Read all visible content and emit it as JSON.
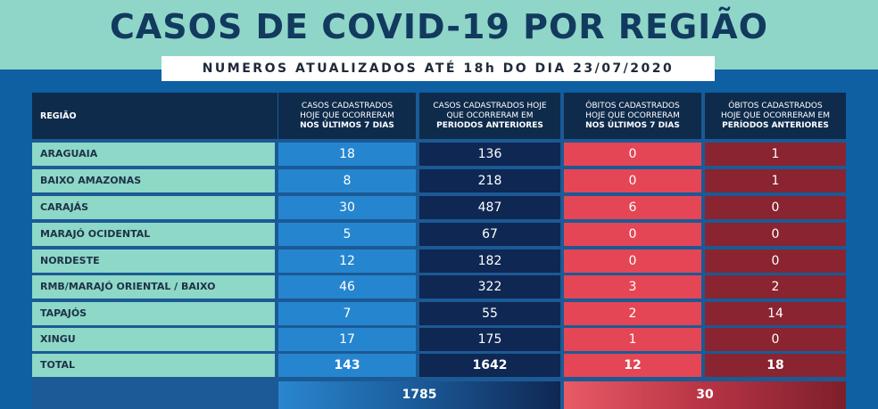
{
  "title": "CASOS DE COVID-19 POR REGIÃO",
  "subtitle": "NUMEROS ATUALIZADOS ATÉ 18h DO DIA 23/07/2020",
  "headers": {
    "region": "REGIÃO",
    "col1_line1": "CASOS CADASTRADOS",
    "col1_line2": "HOJE QUE OCORRERAM",
    "col1_line3": "NOS ÚLTIMOS 7 DIAS",
    "col2_line1": "CASOS CADASTRADOS HOJE",
    "col2_line2": "QUE OCORRERAM EM",
    "col2_line3": "PERIODOS ANTERIORES",
    "col3_line1": "ÓBITOS CADASTRADOS",
    "col3_line2": "HOJE QUE OCORRERAM",
    "col3_line3": "NOS ÚLTIMOS 7 DIAS",
    "col4_line1": "ÓBITOS CADASTRADOS",
    "col4_line2": "HOJE QUE OCORRERAM EM",
    "col4_line3": "PERÍODOS ANTERIORES"
  },
  "rows": [
    {
      "region": "ARAGUAIA",
      "c1": "18",
      "c2": "136",
      "c3": "0",
      "c4": "1"
    },
    {
      "region": "BAIXO AMAZONAS",
      "c1": "8",
      "c2": "218",
      "c3": "0",
      "c4": "1"
    },
    {
      "region": "CARAJÁS",
      "c1": "30",
      "c2": "487",
      "c3": "6",
      "c4": "0"
    },
    {
      "region": "MARAJÓ OCIDENTAL",
      "c1": "5",
      "c2": "67",
      "c3": "0",
      "c4": "0"
    },
    {
      "region": "NORDESTE",
      "c1": "12",
      "c2": "182",
      "c3": "0",
      "c4": "0"
    },
    {
      "region": "RMB/MARAJÓ ORIENTAL / BAIXO TOCANTINS",
      "c1": "46",
      "c2": "322",
      "c3": "3",
      "c4": "2"
    },
    {
      "region": "TAPAJÓS",
      "c1": "7",
      "c2": "55",
      "c3": "2",
      "c4": "14"
    },
    {
      "region": "XINGU",
      "c1": "17",
      "c2": "175",
      "c3": "1",
      "c4": "0"
    }
  ],
  "total": {
    "region": "TOTAL",
    "c1": "143",
    "c2": "1642",
    "c3": "12",
    "c4": "18"
  },
  "grand_total": {
    "cases": "1785",
    "deaths": "30"
  }
}
